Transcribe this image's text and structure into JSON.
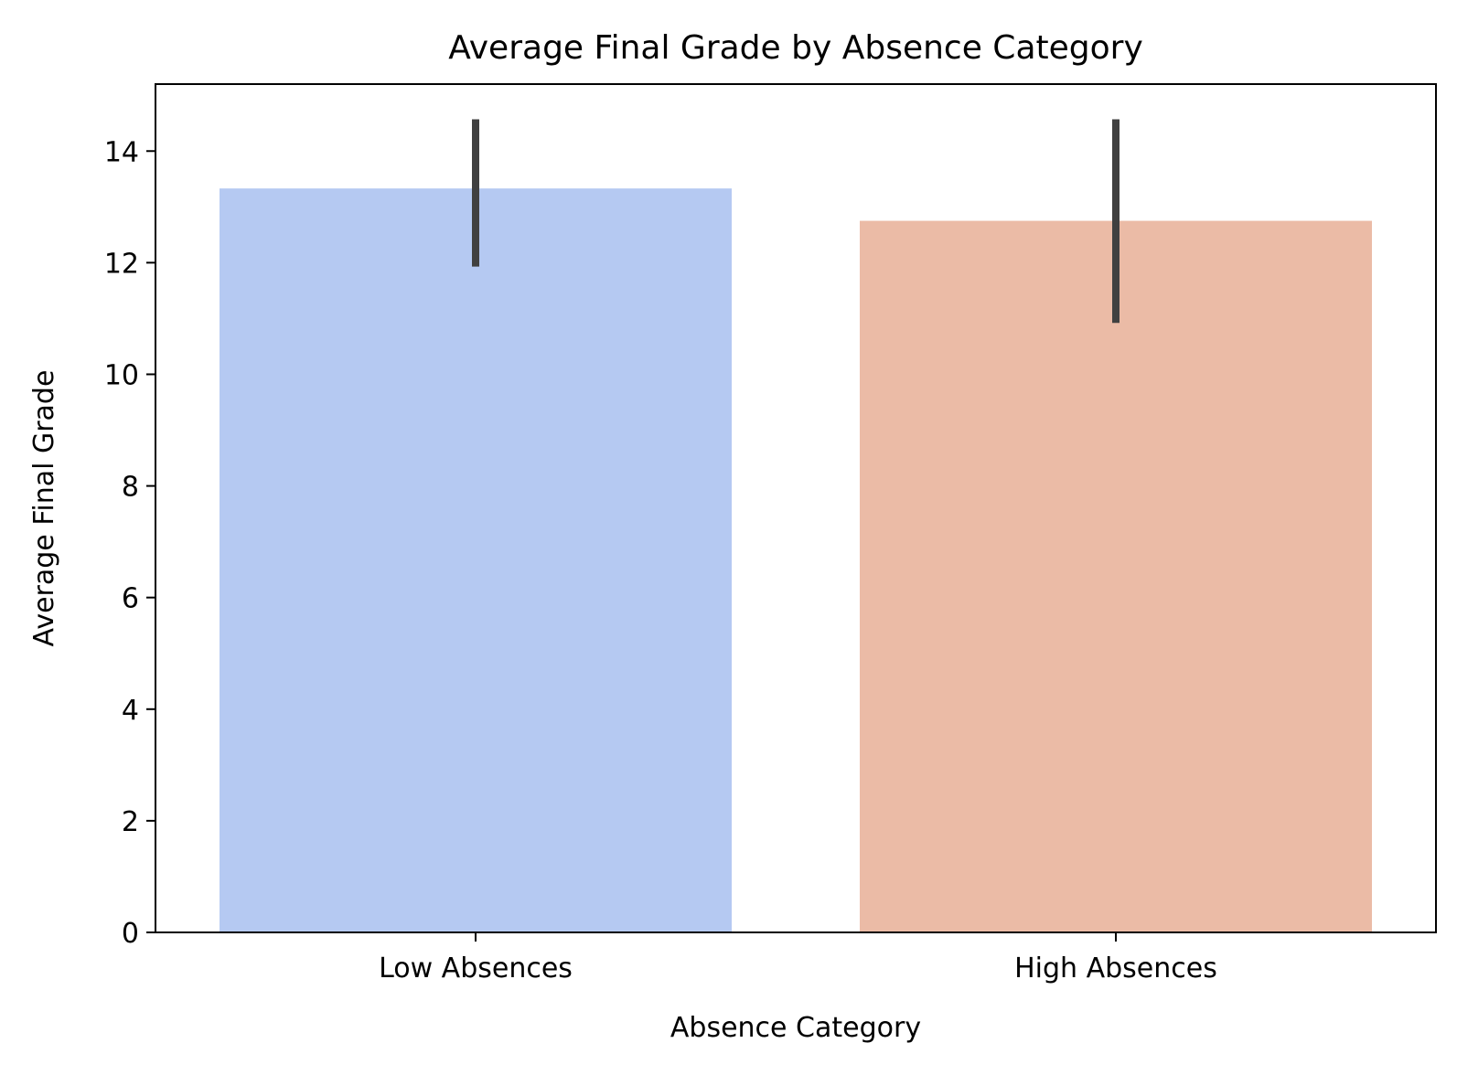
{
  "chart_data": {
    "type": "bar",
    "title": "Average Final Grade by Absence Category",
    "xlabel": "Absence Category",
    "ylabel": "Average Final Grade",
    "categories": [
      "Low Absences",
      "High Absences"
    ],
    "values": [
      13.33,
      12.75
    ],
    "error_bars": [
      {
        "low": 11.93,
        "high": 14.57
      },
      {
        "low": 10.92,
        "high": 14.57
      }
    ],
    "ylim": [
      0,
      15.2
    ],
    "yticks": [
      0,
      2,
      4,
      6,
      8,
      10,
      12,
      14
    ],
    "colors": [
      "#b5c9f2",
      "#ebbba6"
    ],
    "error_color": "#404040",
    "grid": false,
    "legend": "none"
  }
}
